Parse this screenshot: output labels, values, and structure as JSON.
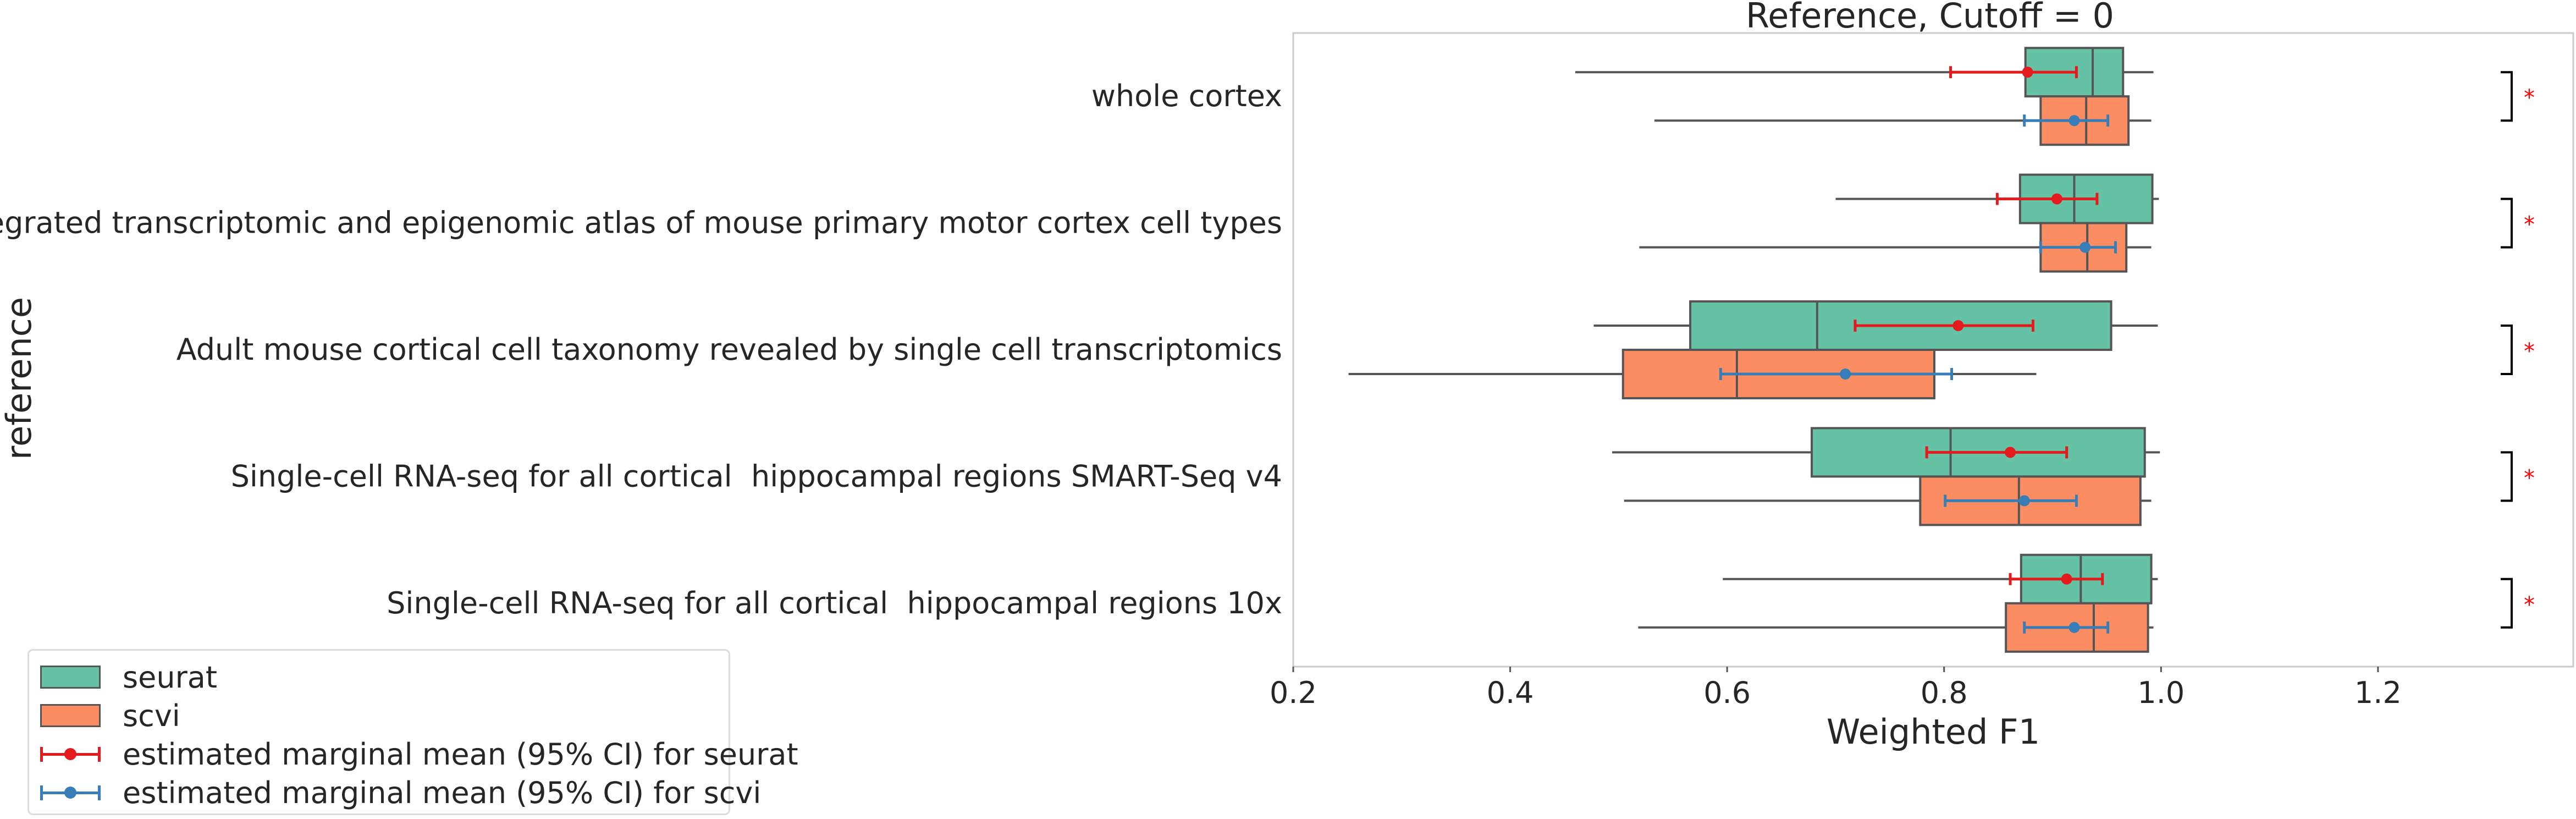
{
  "chart_data": {
    "type": "box",
    "title": "Reference, Cutoff = 0",
    "xlabel": "Weighted F1",
    "ylabel": "reference",
    "xlim": [
      0.2,
      1.38
    ],
    "xticks": [
      "0.2",
      "0.4",
      "0.6",
      "0.8",
      "1.0",
      "1.2"
    ],
    "xtick_values": [
      0.2,
      0.4,
      0.6,
      0.8,
      1.0,
      1.2
    ],
    "grid": false,
    "legend_position": "lower-left",
    "colors": {
      "seurat": "#66c2a5",
      "scvi": "#fc8d62",
      "seurat_emm": "#e41a1c",
      "scvi_emm": "#377eb8",
      "sig": "#ff0000",
      "box_edge": "#555555"
    },
    "categories": [
      "whole cortex",
      "An integrated transcriptomic and epigenomic atlas of mouse primary motor cortex cell types",
      "Adult mouse cortical cell taxonomy revealed by single cell transcriptomics",
      "Single-cell RNA-seq for all cortical  hippocampal regions SMART-Seq v4",
      "Single-cell RNA-seq for all cortical  hippocampal regions 10x"
    ],
    "series": [
      {
        "name": "seurat",
        "boxes": [
          {
            "whislo": 0.46,
            "q1": 0.875,
            "med": 0.937,
            "q3": 0.965,
            "whishi": 0.993
          },
          {
            "whislo": 0.7,
            "q1": 0.87,
            "med": 0.92,
            "q3": 0.992,
            "whishi": 0.998
          },
          {
            "whislo": 0.477,
            "q1": 0.566,
            "med": 0.683,
            "q3": 0.954,
            "whishi": 0.997
          },
          {
            "whislo": 0.494,
            "q1": 0.678,
            "med": 0.806,
            "q3": 0.985,
            "whishi": 0.999
          },
          {
            "whislo": 0.596,
            "q1": 0.871,
            "med": 0.926,
            "q3": 0.991,
            "whishi": 0.997
          }
        ]
      },
      {
        "name": "scvi",
        "boxes": [
          {
            "whislo": 0.533,
            "q1": 0.889,
            "med": 0.931,
            "q3": 0.97,
            "whishi": 0.991
          },
          {
            "whislo": 0.519,
            "q1": 0.889,
            "med": 0.932,
            "q3": 0.968,
            "whishi": 0.991
          },
          {
            "whislo": 0.251,
            "q1": 0.504,
            "med": 0.609,
            "q3": 0.791,
            "whishi": 0.885
          },
          {
            "whislo": 0.505,
            "q1": 0.778,
            "med": 0.869,
            "q3": 0.981,
            "whishi": 0.991
          },
          {
            "whislo": 0.518,
            "q1": 0.857,
            "med": 0.938,
            "q3": 0.988,
            "whishi": 0.993
          }
        ]
      }
    ],
    "emm": [
      {
        "name": "estimated marginal mean (95% CI) for seurat",
        "points": [
          {
            "mean": 0.877,
            "lo": 0.806,
            "hi": 0.922
          },
          {
            "mean": 0.904,
            "lo": 0.849,
            "hi": 0.941
          },
          {
            "mean": 0.813,
            "lo": 0.718,
            "hi": 0.882
          },
          {
            "mean": 0.861,
            "lo": 0.784,
            "hi": 0.913
          },
          {
            "mean": 0.913,
            "lo": 0.861,
            "hi": 0.946
          }
        ]
      },
      {
        "name": "estimated marginal mean (95% CI) for scvi",
        "points": [
          {
            "mean": 0.92,
            "lo": 0.874,
            "hi": 0.951
          },
          {
            "mean": 0.93,
            "lo": 0.889,
            "hi": 0.958
          },
          {
            "mean": 0.709,
            "lo": 0.594,
            "hi": 0.807
          },
          {
            "mean": 0.874,
            "lo": 0.801,
            "hi": 0.922
          },
          {
            "mean": 0.92,
            "lo": 0.874,
            "hi": 0.951
          }
        ]
      }
    ],
    "significance": [
      "*",
      "*",
      "*",
      "*",
      "*"
    ]
  },
  "legend": {
    "items": [
      {
        "label": "seurat",
        "kind": "box",
        "color": "#66c2a5"
      },
      {
        "label": "scvi",
        "kind": "box",
        "color": "#fc8d62"
      },
      {
        "label": "estimated marginal mean (95% CI) for seurat",
        "kind": "errorbar",
        "color": "#e41a1c"
      },
      {
        "label": "estimated marginal mean (95% CI) for scvi",
        "kind": "errorbar",
        "color": "#377eb8"
      }
    ]
  }
}
